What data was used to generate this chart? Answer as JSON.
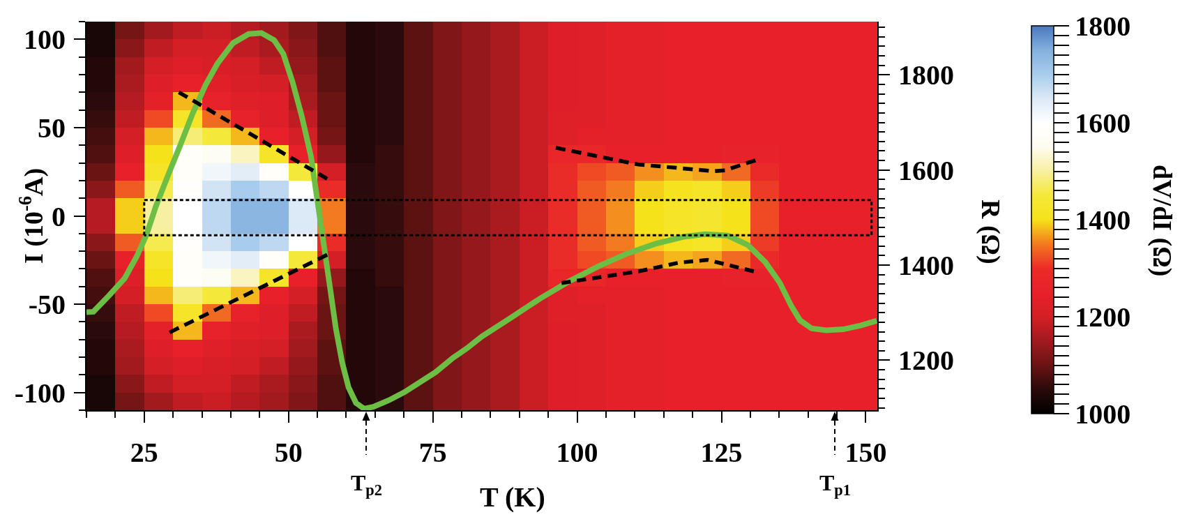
{
  "chart_data": {
    "type": "heatmap",
    "xlabel": "T (K)",
    "ylabel": "I (10$^{-6}$A)",
    "y2label": "R (Ω)",
    "clabel": "dV/dI (Ω)",
    "x": [
      17.5,
      22.5,
      27.5,
      32.5,
      37.5,
      42.5,
      47.5,
      52.5,
      57.5,
      62.5,
      67.5,
      72.5,
      77.5,
      82.5,
      87.5,
      92.5,
      97.5,
      102.5,
      107.5,
      112.5,
      117.5,
      122.5,
      127.5,
      132.5,
      137.5,
      142.5,
      147.5,
      151
    ],
    "cells": [
      [
        1030,
        1110,
        1150,
        1180,
        1190,
        1170,
        1150,
        1120,
        1080,
        1040,
        1050,
        1090,
        1120,
        1140,
        1160,
        1190,
        1220,
        1230,
        1240,
        1240,
        1250,
        1250,
        1250,
        1250,
        1250,
        1250,
        1250,
        1250
      ],
      [
        1030,
        1130,
        1180,
        1200,
        1200,
        1180,
        1160,
        1130,
        1080,
        1040,
        1050,
        1090,
        1120,
        1140,
        1160,
        1190,
        1220,
        1230,
        1240,
        1240,
        1250,
        1250,
        1250,
        1250,
        1250,
        1250,
        1250,
        1250
      ],
      [
        1040,
        1150,
        1200,
        1220,
        1210,
        1200,
        1180,
        1140,
        1090,
        1040,
        1050,
        1090,
        1120,
        1140,
        1160,
        1190,
        1220,
        1230,
        1240,
        1240,
        1250,
        1250,
        1250,
        1250,
        1250,
        1250,
        1250,
        1250
      ],
      [
        1040,
        1160,
        1220,
        1250,
        1230,
        1210,
        1200,
        1150,
        1090,
        1040,
        1050,
        1090,
        1120,
        1140,
        1160,
        1190,
        1220,
        1230,
        1240,
        1240,
        1250,
        1250,
        1250,
        1250,
        1250,
        1250,
        1250,
        1250
      ],
      [
        1050,
        1170,
        1240,
        1380,
        1260,
        1230,
        1220,
        1160,
        1100,
        1040,
        1050,
        1090,
        1120,
        1140,
        1160,
        1190,
        1220,
        1230,
        1240,
        1240,
        1250,
        1250,
        1250,
        1250,
        1250,
        1250,
        1250,
        1250
      ],
      [
        1060,
        1180,
        1320,
        1420,
        1340,
        1260,
        1220,
        1180,
        1100,
        1040,
        1050,
        1090,
        1120,
        1140,
        1160,
        1190,
        1230,
        1230,
        1240,
        1240,
        1250,
        1250,
        1250,
        1250,
        1250,
        1250,
        1250,
        1250
      ],
      [
        1070,
        1200,
        1380,
        1480,
        1450,
        1380,
        1250,
        1200,
        1110,
        1040,
        1050,
        1090,
        1120,
        1140,
        1160,
        1190,
        1230,
        1240,
        1240,
        1240,
        1250,
        1250,
        1250,
        1250,
        1250,
        1250,
        1250,
        1250
      ],
      [
        1080,
        1220,
        1400,
        1580,
        1560,
        1520,
        1420,
        1250,
        1140,
        1040,
        1060,
        1090,
        1120,
        1140,
        1160,
        1190,
        1280,
        1280,
        1250,
        1250,
        1250,
        1250,
        1260,
        1260,
        1250,
        1250,
        1250,
        1250
      ],
      [
        1100,
        1250,
        1420,
        1580,
        1620,
        1640,
        1580,
        1450,
        1200,
        1050,
        1060,
        1090,
        1120,
        1140,
        1160,
        1190,
        1300,
        1320,
        1330,
        1360,
        1380,
        1370,
        1340,
        1290,
        1250,
        1250,
        1250,
        1250
      ],
      [
        1130,
        1330,
        1460,
        1590,
        1660,
        1700,
        1680,
        1600,
        1300,
        1050,
        1060,
        1090,
        1120,
        1140,
        1160,
        1190,
        1300,
        1330,
        1350,
        1390,
        1410,
        1420,
        1390,
        1310,
        1250,
        1250,
        1250,
        1250
      ],
      [
        1170,
        1390,
        1500,
        1600,
        1680,
        1740,
        1740,
        1650,
        1350,
        1050,
        1060,
        1090,
        1120,
        1140,
        1160,
        1190,
        1300,
        1330,
        1360,
        1400,
        1420,
        1430,
        1400,
        1320,
        1250,
        1250,
        1250,
        1250
      ],
      [
        1170,
        1390,
        1500,
        1600,
        1680,
        1740,
        1740,
        1650,
        1350,
        1050,
        1060,
        1090,
        1120,
        1140,
        1160,
        1190,
        1300,
        1330,
        1360,
        1400,
        1420,
        1430,
        1400,
        1320,
        1250,
        1250,
        1250,
        1250
      ],
      [
        1130,
        1330,
        1460,
        1590,
        1660,
        1700,
        1680,
        1600,
        1300,
        1050,
        1060,
        1090,
        1120,
        1140,
        1160,
        1190,
        1300,
        1330,
        1350,
        1390,
        1410,
        1420,
        1390,
        1310,
        1250,
        1250,
        1250,
        1250
      ],
      [
        1100,
        1250,
        1420,
        1580,
        1620,
        1640,
        1580,
        1450,
        1200,
        1050,
        1060,
        1090,
        1120,
        1140,
        1160,
        1190,
        1300,
        1320,
        1330,
        1360,
        1380,
        1370,
        1340,
        1290,
        1250,
        1250,
        1250,
        1250
      ],
      [
        1080,
        1220,
        1400,
        1580,
        1560,
        1520,
        1420,
        1250,
        1140,
        1040,
        1060,
        1090,
        1120,
        1140,
        1160,
        1190,
        1280,
        1280,
        1250,
        1250,
        1250,
        1250,
        1260,
        1260,
        1250,
        1250,
        1250,
        1250
      ],
      [
        1070,
        1200,
        1380,
        1480,
        1450,
        1380,
        1250,
        1200,
        1110,
        1040,
        1050,
        1090,
        1120,
        1140,
        1160,
        1190,
        1230,
        1240,
        1240,
        1240,
        1250,
        1250,
        1250,
        1250,
        1250,
        1250,
        1250,
        1250
      ],
      [
        1060,
        1180,
        1320,
        1420,
        1340,
        1260,
        1220,
        1180,
        1100,
        1040,
        1050,
        1090,
        1120,
        1140,
        1160,
        1190,
        1230,
        1230,
        1240,
        1240,
        1250,
        1250,
        1250,
        1250,
        1250,
        1250,
        1250,
        1250
      ],
      [
        1050,
        1170,
        1240,
        1380,
        1260,
        1230,
        1220,
        1160,
        1100,
        1040,
        1050,
        1090,
        1120,
        1140,
        1160,
        1190,
        1220,
        1230,
        1240,
        1240,
        1250,
        1250,
        1250,
        1250,
        1250,
        1250,
        1250,
        1250
      ],
      [
        1040,
        1160,
        1220,
        1250,
        1230,
        1210,
        1200,
        1150,
        1090,
        1040,
        1050,
        1090,
        1120,
        1140,
        1160,
        1190,
        1220,
        1230,
        1240,
        1240,
        1250,
        1250,
        1250,
        1250,
        1250,
        1250,
        1250,
        1250
      ],
      [
        1040,
        1150,
        1200,
        1220,
        1210,
        1200,
        1180,
        1140,
        1090,
        1040,
        1050,
        1090,
        1120,
        1140,
        1160,
        1190,
        1220,
        1230,
        1240,
        1240,
        1250,
        1250,
        1250,
        1250,
        1250,
        1250,
        1250,
        1250
      ],
      [
        1030,
        1130,
        1180,
        1200,
        1200,
        1180,
        1160,
        1130,
        1080,
        1040,
        1050,
        1090,
        1120,
        1140,
        1160,
        1190,
        1220,
        1230,
        1240,
        1240,
        1250,
        1250,
        1250,
        1250,
        1250,
        1250,
        1250,
        1250
      ],
      [
        1030,
        1110,
        1150,
        1180,
        1190,
        1170,
        1150,
        1120,
        1080,
        1040,
        1050,
        1090,
        1120,
        1140,
        1160,
        1190,
        1220,
        1230,
        1240,
        1240,
        1250,
        1250,
        1250,
        1250,
        1250,
        1250,
        1250,
        1250
      ]
    ],
    "colors": [
      "#000000",
      "#2a0a0a",
      "#6a1414",
      "#a01a1e",
      "#d41f26",
      "#e8202a",
      "#ea2c28",
      "#f37a20",
      "#f6e21a",
      "#f4e83a",
      "#f7f0a0",
      "#fefcf0",
      "#ffffff",
      "#dce9f6",
      "#a8cdec",
      "#84b0de",
      "#4a78bf"
    ],
    "clim": [
      1000,
      1800
    ],
    "cticks": [
      1000,
      {
        "value": 1020,
        "label": null
      },
      {
        "value": 1040,
        "label": null
      },
      {
        "value": 1060,
        "label": null
      },
      {
        "value": 1080,
        "label": null
      },
      {
        "value": 1100,
        "label": null
      },
      {
        "value": 1120,
        "label": null
      },
      {
        "value": 1140,
        "label": null
      },
      {
        "value": 1160,
        "label": null
      },
      {
        "value": 1180,
        "label": null
      },
      1200,
      {
        "value": 1220,
        "label": null
      },
      {
        "value": 1240,
        "label": null
      },
      {
        "value": 1260,
        "label": null
      },
      {
        "value": 1280,
        "label": null
      },
      {
        "value": 1300,
        "label": null
      },
      {
        "value": 1320,
        "label": null
      },
      {
        "value": 1340,
        "label": null
      },
      {
        "value": 1360,
        "label": null
      },
      {
        "value": 1380,
        "label": null
      },
      1400,
      {
        "value": 1420,
        "label": null
      },
      {
        "value": 1440,
        "label": null
      },
      {
        "value": 1460,
        "label": null
      },
      {
        "value": 1480,
        "label": null
      },
      {
        "value": 1500,
        "label": null
      },
      {
        "value": 1520,
        "label": null
      },
      {
        "value": 1540,
        "label": null
      },
      {
        "value": 1560,
        "label": null
      },
      {
        "value": 1580,
        "label": null
      },
      1600,
      {
        "value": 1620,
        "label": null
      },
      {
        "value": 1640,
        "label": null
      },
      {
        "value": 1660,
        "label": null
      },
      {
        "value": 1680,
        "label": null
      },
      {
        "value": 1700,
        "label": null
      },
      {
        "value": 1720,
        "label": null
      },
      {
        "value": 1740,
        "label": null
      },
      {
        "value": 1760,
        "label": null
      },
      {
        "value": 1780,
        "label": null
      },
      1800
    ],
    "xlim": [
      15,
      152
    ],
    "xticks": [
      {
        "value": 15,
        "label": null
      },
      {
        "value": 20,
        "label": null
      },
      25,
      {
        "value": 30,
        "label": null
      },
      {
        "value": 35,
        "label": null
      },
      {
        "value": 40,
        "label": null
      },
      {
        "value": 45,
        "label": null
      },
      50,
      {
        "value": 55,
        "label": null
      },
      {
        "value": 60,
        "label": null
      },
      {
        "value": 65,
        "label": null
      },
      {
        "value": 70,
        "label": null
      },
      75,
      {
        "value": 80,
        "label": null
      },
      {
        "value": 85,
        "label": null
      },
      {
        "value": 90,
        "label": null
      },
      {
        "value": 95,
        "label": null
      },
      100,
      {
        "value": 105,
        "label": null
      },
      {
        "value": 110,
        "label": null
      },
      {
        "value": 115,
        "label": null
      },
      {
        "value": 120,
        "label": null
      },
      125,
      {
        "value": 130,
        "label": null
      },
      {
        "value": 135,
        "label": null
      },
      {
        "value": 140,
        "label": null
      },
      {
        "value": 145,
        "label": null
      },
      150
    ],
    "ylim": [
      -110,
      110
    ],
    "yticks": [
      {
        "value": -110,
        "label": null
      },
      -100,
      {
        "value": -90,
        "label": null
      },
      {
        "value": -80,
        "label": null
      },
      {
        "value": -70,
        "label": null
      },
      {
        "value": -60,
        "label": null
      },
      -50,
      {
        "value": -40,
        "label": null
      },
      {
        "value": -30,
        "label": null
      },
      {
        "value": -20,
        "label": null
      },
      {
        "value": -10,
        "label": null
      },
      0,
      {
        "value": 10,
        "label": null
      },
      {
        "value": 20,
        "label": null
      },
      {
        "value": 30,
        "label": null
      },
      {
        "value": 40,
        "label": null
      },
      50,
      {
        "value": 60,
        "label": null
      },
      {
        "value": 70,
        "label": null
      },
      {
        "value": 80,
        "label": null
      },
      {
        "value": 90,
        "label": null
      },
      100,
      {
        "value": 110,
        "label": null
      }
    ],
    "y2lim": [
      1095,
      1912
    ],
    "y2ticks": [
      {
        "value": 1100,
        "label": null
      },
      {
        "value": 1120,
        "label": null
      },
      {
        "value": 1140,
        "label": null
      },
      {
        "value": 1160,
        "label": null
      },
      {
        "value": 1180,
        "label": null
      },
      1200,
      {
        "value": 1220,
        "label": null
      },
      {
        "value": 1240,
        "label": null
      },
      {
        "value": 1260,
        "label": null
      },
      {
        "value": 1280,
        "label": null
      },
      {
        "value": 1300,
        "label": null
      },
      {
        "value": 1320,
        "label": null
      },
      {
        "value": 1340,
        "label": null
      },
      {
        "value": 1360,
        "label": null
      },
      {
        "value": 1380,
        "label": null
      },
      1400,
      {
        "value": 1420,
        "label": null
      },
      {
        "value": 1440,
        "label": null
      },
      {
        "value": 1460,
        "label": null
      },
      {
        "value": 1480,
        "label": null
      },
      {
        "value": 1500,
        "label": null
      },
      {
        "value": 1520,
        "label": null
      },
      {
        "value": 1540,
        "label": null
      },
      {
        "value": 1560,
        "label": null
      },
      {
        "value": 1580,
        "label": null
      },
      1600,
      {
        "value": 1620,
        "label": null
      },
      {
        "value": 1640,
        "label": null
      },
      {
        "value": 1660,
        "label": null
      },
      {
        "value": 1680,
        "label": null
      },
      {
        "value": 1700,
        "label": null
      },
      {
        "value": 1720,
        "label": null
      },
      {
        "value": 1740,
        "label": null
      },
      {
        "value": 1760,
        "label": null
      },
      {
        "value": 1780,
        "label": null
      },
      1800,
      {
        "value": 1820,
        "label": null
      },
      {
        "value": 1840,
        "label": null
      },
      {
        "value": 1860,
        "label": null
      },
      {
        "value": 1880,
        "label": null
      },
      {
        "value": 1900,
        "label": null
      }
    ],
    "series": [
      {
        "type": "line",
        "line_style": "dashed",
        "color": "#000000",
        "x": [
          31.0,
          56.7
        ],
        "values": [
          70,
          21
        ]
      },
      {
        "type": "line",
        "line_style": "dashed",
        "color": "#000000",
        "x": [
          29.4,
          56.7
        ],
        "values": [
          -66,
          -22
        ]
      },
      {
        "type": "line",
        "line_style": "dashed",
        "color": "#000000",
        "x": [
          96.3,
          103.5,
          110.6,
          118.0,
          123.6,
          125.6,
          130.9
        ],
        "values": [
          38.6,
          33.8,
          29.1,
          27.0,
          25.3,
          25.8,
          31.5
        ]
      },
      {
        "type": "line",
        "line_style": "dashed",
        "color": "#000000",
        "x": [
          97.3,
          110.6,
          117.6,
          122.6,
          130.6
        ],
        "values": [
          -38.0,
          -31.4,
          -26.5,
          -24.9,
          -31.4
        ]
      },
      {
        "type": "line",
        "line_style": "dotted",
        "color": "#000000",
        "x": [
          25,
          151,
          151,
          25
        ],
        "values": [
          9,
          9,
          -11,
          -11
        ]
      },
      {
        "type": "line",
        "line_style": "dotted",
        "color": "#000000",
        "x": [
          25,
          25
        ],
        "values": [
          -11,
          9
        ]
      },
      {
        "type": "line",
        "line_style": "solid",
        "axis": "y2",
        "color": "#6cbe45",
        "x": [
          15.0,
          16.2,
          18.9,
          21.6,
          23.7,
          25.4,
          27.0,
          29.1,
          31.3,
          33.4,
          35.6,
          37.7,
          40.4,
          43.1,
          45.3,
          47.5,
          49.1,
          50.7,
          52.3,
          53.9,
          55.0,
          56.1,
          57.2,
          58.2,
          59.3,
          60.4,
          61.7,
          63.1,
          64.7,
          67.4,
          70.1,
          75.5,
          78.5,
          80.9,
          83.5,
          88.6,
          93.6,
          98.6,
          103.6,
          108.6,
          113.6,
          118.6,
          122.1,
          126.1,
          129.6,
          132.6,
          135.1,
          137.1,
          138.6,
          140.6,
          143.1,
          146.1,
          149.1,
          151.9
        ],
        "values": [
          1301,
          1302,
          1336,
          1372,
          1418,
          1464,
          1523,
          1588,
          1654,
          1719,
          1778,
          1824,
          1867,
          1886,
          1888,
          1873,
          1844,
          1785,
          1713,
          1628,
          1536,
          1444,
          1352,
          1267,
          1195,
          1143,
          1110,
          1098,
          1102,
          1116,
          1133,
          1175,
          1205,
          1225,
          1250,
          1290,
          1330,
          1366,
          1397,
          1424,
          1445,
          1460,
          1465,
          1462,
          1442,
          1406,
          1363,
          1314,
          1284,
          1267,
          1263,
          1265,
          1273,
          1283
        ]
      }
    ],
    "annotations": [
      "T$_{p2}$",
      "T$_{p1}$"
    ]
  }
}
